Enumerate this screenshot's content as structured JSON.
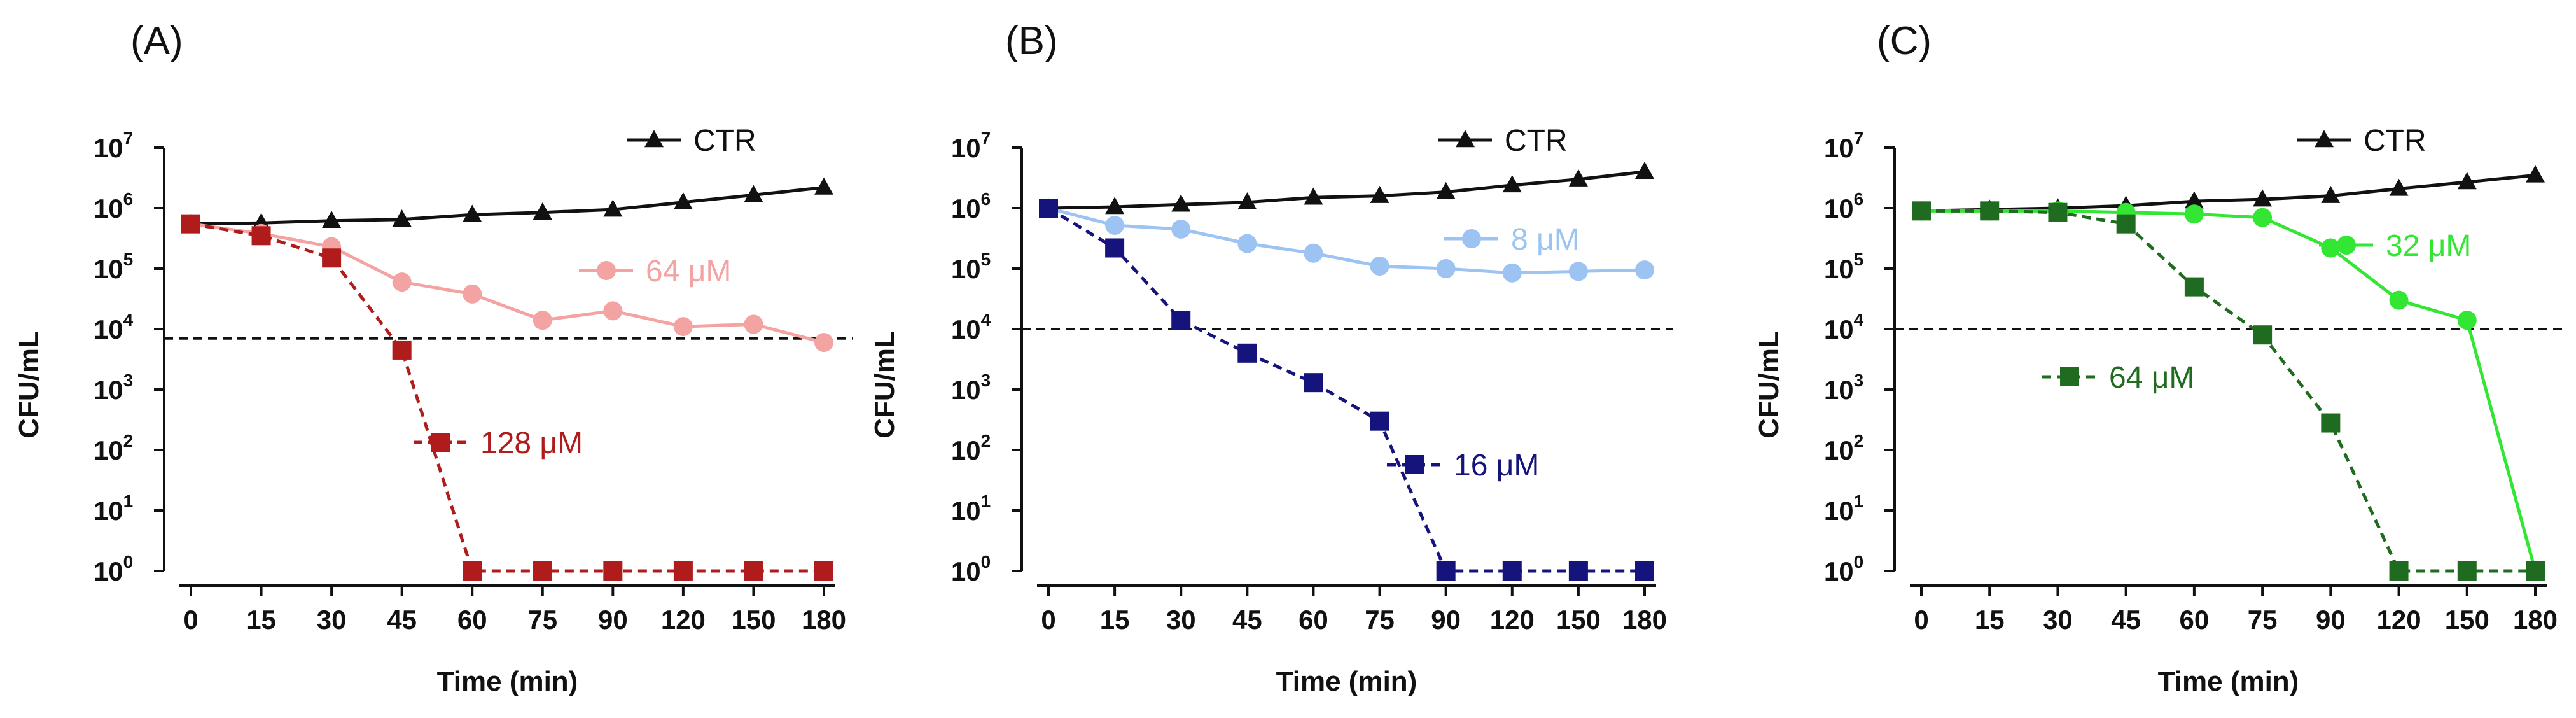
{
  "chart_data": [
    {
      "panel_label": "(A)",
      "type": "line",
      "yscale": "log",
      "ylim": [
        1,
        10000000
      ],
      "xlabel": "Time (min)",
      "ylabel": "CFU/mL",
      "categories": [
        "0",
        "15",
        "30",
        "45",
        "60",
        "75",
        "90",
        "120",
        "150",
        "180"
      ],
      "yticks": [
        {
          "base": "10",
          "exp": "0"
        },
        {
          "base": "10",
          "exp": "1"
        },
        {
          "base": "10",
          "exp": "2"
        },
        {
          "base": "10",
          "exp": "3"
        },
        {
          "base": "10",
          "exp": "4"
        },
        {
          "base": "10",
          "exp": "5"
        },
        {
          "base": "10",
          "exp": "6"
        },
        {
          "base": "10",
          "exp": "7"
        }
      ],
      "threshold": 7000,
      "series": [
        {
          "name": "CTR",
          "color": "#111111",
          "marker": "triangle",
          "dashed": false,
          "values": [
            550000,
            570000,
            620000,
            650000,
            780000,
            850000,
            950000,
            1250000,
            1650000,
            2200000
          ]
        },
        {
          "name": "64 μM",
          "color": "#f4a3a3",
          "marker": "circle",
          "dashed": false,
          "values": [
            550000,
            380000,
            230000,
            60000,
            38000,
            14000,
            20000,
            11000,
            12000,
            6000
          ]
        },
        {
          "name": "128 μM",
          "color": "#b01c1c",
          "marker": "square",
          "dashed": true,
          "values": [
            550000,
            350000,
            150000,
            4500,
            1,
            1,
            1,
            1,
            1,
            1
          ]
        }
      ]
    },
    {
      "panel_label": "(B)",
      "type": "line",
      "yscale": "log",
      "ylim": [
        1,
        10000000
      ],
      "xlabel": "Time (min)",
      "ylabel": "CFU/mL",
      "categories": [
        "0",
        "15",
        "30",
        "45",
        "60",
        "75",
        "90",
        "120",
        "150",
        "180"
      ],
      "yticks": [
        {
          "base": "10",
          "exp": "0"
        },
        {
          "base": "10",
          "exp": "1"
        },
        {
          "base": "10",
          "exp": "2"
        },
        {
          "base": "10",
          "exp": "3"
        },
        {
          "base": "10",
          "exp": "4"
        },
        {
          "base": "10",
          "exp": "5"
        },
        {
          "base": "10",
          "exp": "6"
        },
        {
          "base": "10",
          "exp": "7"
        }
      ],
      "threshold": 10000,
      "series": [
        {
          "name": "CTR",
          "color": "#111111",
          "marker": "triangle",
          "dashed": false,
          "values": [
            1000000,
            1050000,
            1150000,
            1250000,
            1500000,
            1600000,
            1850000,
            2400000,
            3000000,
            4000000
          ]
        },
        {
          "name": "8 μM",
          "color": "#9cc3f2",
          "marker": "circle",
          "dashed": false,
          "values": [
            1000000,
            520000,
            450000,
            260000,
            180000,
            110000,
            100000,
            85000,
            90000,
            95000
          ]
        },
        {
          "name": "16 μM",
          "color": "#14147c",
          "marker": "square",
          "dashed": true,
          "values": [
            1000000,
            220000,
            14000,
            4000,
            1300,
            300,
            1,
            1,
            1,
            1
          ]
        }
      ]
    },
    {
      "panel_label": "(C)",
      "type": "line",
      "yscale": "log",
      "ylim": [
        1,
        10000000
      ],
      "xlabel": "Time (min)",
      "ylabel": "CFU/mL",
      "categories": [
        "0",
        "15",
        "30",
        "45",
        "60",
        "75",
        "90",
        "120",
        "150",
        "180"
      ],
      "yticks": [
        {
          "base": "10",
          "exp": "0"
        },
        {
          "base": "10",
          "exp": "1"
        },
        {
          "base": "10",
          "exp": "2"
        },
        {
          "base": "10",
          "exp": "3"
        },
        {
          "base": "10",
          "exp": "4"
        },
        {
          "base": "10",
          "exp": "5"
        },
        {
          "base": "10",
          "exp": "6"
        },
        {
          "base": "10",
          "exp": "7"
        }
      ],
      "threshold": 10000,
      "series": [
        {
          "name": "CTR",
          "color": "#111111",
          "marker": "triangle",
          "dashed": false,
          "values": [
            900000,
            950000,
            1000000,
            1100000,
            1300000,
            1400000,
            1600000,
            2100000,
            2700000,
            3500000
          ]
        },
        {
          "name": "32 μM",
          "color": "#33e633",
          "marker": "circle",
          "dashed": false,
          "values": [
            900000,
            900000,
            900000,
            850000,
            800000,
            700000,
            220000,
            30000,
            14000,
            1
          ]
        },
        {
          "name": "64 μM",
          "color": "#1f6b1f",
          "marker": "square",
          "dashed": true,
          "values": [
            900000,
            900000,
            850000,
            550000,
            50000,
            8000,
            280,
            1,
            1,
            1
          ]
        }
      ]
    }
  ]
}
